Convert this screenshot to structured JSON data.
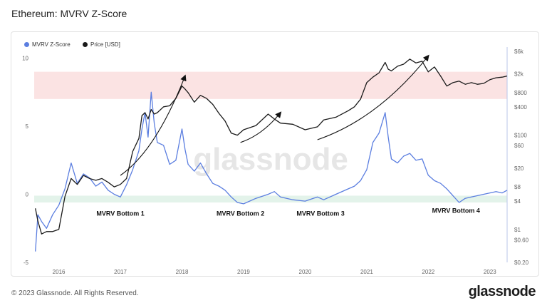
{
  "header": {
    "title": "Ethereum: MVRV Z-Score"
  },
  "footer": {
    "copyright": "© 2023 Glassnode. All Rights Reserved.",
    "logo": "glassnode"
  },
  "watermark": "glassnode",
  "colors": {
    "mvrv": "#5b7ee0",
    "price": "#1a1a1a",
    "red_band": "#fbe3e3",
    "green_band": "#e3f3ea"
  },
  "chart_data": {
    "type": "line",
    "legend": [
      {
        "name": "MVRV Z-Score",
        "color": "#5b7ee0"
      },
      {
        "name": "Price [USD]",
        "color": "#1a1a1a"
      }
    ],
    "x_ticks": [
      "2016",
      "2017",
      "2018",
      "2019",
      "2020",
      "2021",
      "2022",
      "2023"
    ],
    "y_left_ticks": [
      10,
      5,
      0,
      -5
    ],
    "y_left_range": [
      -5,
      10.5
    ],
    "y_right_ticks": [
      "$6k",
      "$2k",
      "$800",
      "$400",
      "$100",
      "$60",
      "$20",
      "$8",
      "$4",
      "$1",
      "$0.60",
      "$0.20"
    ],
    "y_right_tick_values": [
      6000,
      2000,
      800,
      400,
      100,
      60,
      20,
      8,
      4,
      1,
      0.6,
      0.2
    ],
    "y_right_scale": "log",
    "bands": [
      {
        "name": "overvalued",
        "y_from": 7,
        "y_to": 9,
        "color": "#fbe3e3"
      },
      {
        "name": "undervalued",
        "y_from": -0.6,
        "y_to": -0.1,
        "color": "#e3f3ea"
      }
    ],
    "series": [
      {
        "name": "MVRV Z-Score",
        "x": [
          2015.62,
          2015.66,
          2015.72,
          2015.8,
          2015.9,
          2016.0,
          2016.1,
          2016.2,
          2016.3,
          2016.4,
          2016.5,
          2016.6,
          2016.7,
          2016.8,
          2016.9,
          2017.0,
          2017.1,
          2017.2,
          2017.3,
          2017.35,
          2017.4,
          2017.45,
          2017.5,
          2017.55,
          2017.6,
          2017.7,
          2017.8,
          2017.9,
          2018.0,
          2018.05,
          2018.1,
          2018.2,
          2018.3,
          2018.4,
          2018.5,
          2018.6,
          2018.7,
          2018.8,
          2018.9,
          2019.0,
          2019.2,
          2019.4,
          2019.5,
          2019.6,
          2019.8,
          2020.0,
          2020.2,
          2020.3,
          2020.5,
          2020.7,
          2020.8,
          2020.9,
          2021.0,
          2021.1,
          2021.2,
          2021.3,
          2021.35,
          2021.4,
          2021.5,
          2021.6,
          2021.7,
          2021.8,
          2021.9,
          2022.0,
          2022.1,
          2022.2,
          2022.3,
          2022.4,
          2022.5,
          2022.6,
          2022.7,
          2022.8,
          2022.9,
          2023.0,
          2023.1,
          2023.2,
          2023.28
        ],
        "y": [
          -4.2,
          -1.5,
          -2.0,
          -2.5,
          -1.5,
          -0.8,
          0.4,
          2.3,
          0.8,
          1.5,
          1.2,
          0.6,
          0.9,
          0.3,
          0.0,
          -0.2,
          0.7,
          1.8,
          3.2,
          4.8,
          6.0,
          4.2,
          7.5,
          5.2,
          3.8,
          3.6,
          2.2,
          2.5,
          4.8,
          3.3,
          2.2,
          1.7,
          2.3,
          1.5,
          0.8,
          0.6,
          0.3,
          -0.2,
          -0.6,
          -0.7,
          -0.3,
          0.0,
          0.2,
          -0.2,
          -0.4,
          -0.5,
          -0.2,
          -0.4,
          0.0,
          0.4,
          0.6,
          1.0,
          1.8,
          3.8,
          4.5,
          6.0,
          4.2,
          2.6,
          2.3,
          2.8,
          3.0,
          2.5,
          2.6,
          1.4,
          1.0,
          0.8,
          0.4,
          -0.1,
          -0.6,
          -0.3,
          -0.2,
          -0.1,
          0.0,
          0.1,
          0.2,
          0.1,
          0.3
        ]
      },
      {
        "name": "Price [USD]",
        "x": [
          2015.62,
          2015.66,
          2015.72,
          2015.8,
          2015.9,
          2016.0,
          2016.1,
          2016.2,
          2016.3,
          2016.4,
          2016.5,
          2016.6,
          2016.7,
          2016.8,
          2016.9,
          2017.0,
          2017.1,
          2017.2,
          2017.3,
          2017.35,
          2017.4,
          2017.45,
          2017.5,
          2017.55,
          2017.6,
          2017.7,
          2017.8,
          2017.9,
          2018.0,
          2018.05,
          2018.1,
          2018.2,
          2018.3,
          2018.4,
          2018.5,
          2018.6,
          2018.7,
          2018.8,
          2018.9,
          2019.0,
          2019.2,
          2019.4,
          2019.5,
          2019.6,
          2019.8,
          2020.0,
          2020.2,
          2020.3,
          2020.5,
          2020.7,
          2020.8,
          2020.9,
          2021.0,
          2021.1,
          2021.2,
          2021.3,
          2021.35,
          2021.4,
          2021.5,
          2021.6,
          2021.7,
          2021.8,
          2021.9,
          2022.0,
          2022.1,
          2022.2,
          2022.3,
          2022.4,
          2022.5,
          2022.6,
          2022.7,
          2022.8,
          2022.9,
          2023.0,
          2023.1,
          2023.2,
          2023.28
        ],
        "y": [
          2.8,
          1.5,
          0.8,
          0.9,
          0.9,
          1.0,
          5,
          12,
          9,
          14,
          12,
          11,
          12,
          10,
          8,
          9,
          12,
          45,
          85,
          260,
          300,
          220,
          350,
          280,
          300,
          400,
          420,
          600,
          1100,
          950,
          800,
          500,
          700,
          600,
          450,
          290,
          200,
          110,
          100,
          130,
          160,
          280,
          220,
          180,
          170,
          130,
          150,
          210,
          240,
          330,
          400,
          580,
          1300,
          1700,
          2100,
          3500,
          2500,
          2300,
          2900,
          3200,
          4100,
          3400,
          3700,
          2200,
          2800,
          1800,
          1100,
          1300,
          1400,
          1200,
          1300,
          1200,
          1250,
          1500,
          1650,
          1700,
          1800
        ]
      }
    ],
    "annotations": [
      {
        "text": "MVRV Bottom 1",
        "x": 2017.0,
        "y": -1.4
      },
      {
        "text": "MVRV Bottom 2",
        "x": 2018.95,
        "y": -1.4
      },
      {
        "text": "MVRV Bottom 3",
        "x": 2020.25,
        "y": -1.4
      },
      {
        "text": "MVRV Bottom 4",
        "x": 2022.45,
        "y": -1.2
      }
    ]
  }
}
